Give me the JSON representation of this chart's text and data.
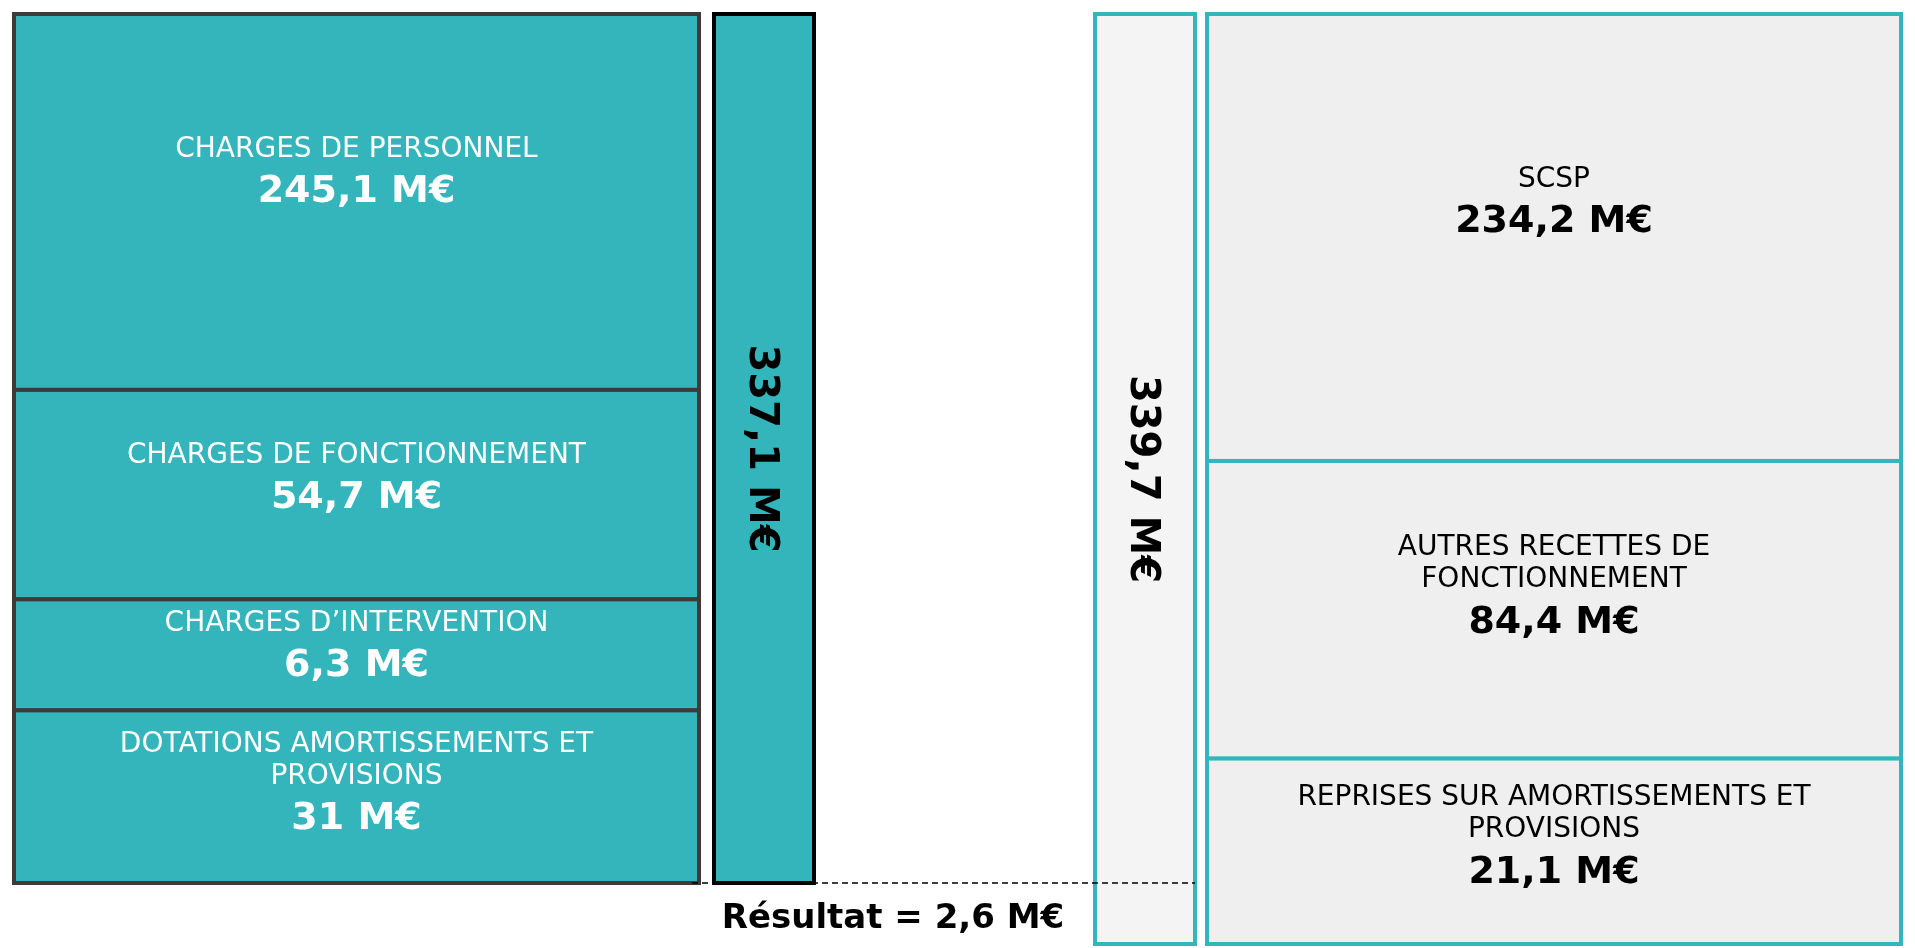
{
  "chart_data": {
    "type": "other",
    "series": [
      {
        "name": "CHARGES DE PERSONNEL",
        "color": "#33b5bb",
        "values": [
          245.1
        ],
        "value_labels": [
          "245,1 M€"
        ]
      },
      {
        "name": "CHARGES DE FONCTIONNEMENT",
        "color": "#33b5bb",
        "values": [
          54.7
        ],
        "value_labels": [
          "54,7 M€"
        ]
      },
      {
        "name": "CHARGES D’INTERVENTION",
        "color": "#33b5bb",
        "values": [
          6.3
        ],
        "value_labels": [
          "6,3 M€"
        ]
      },
      {
        "name": "DOTATIONS AMORTISSEMENTS ET PROVISIONS",
        "color": "#33b5bb",
        "values": [
          31
        ],
        "value_labels": [
          "31 M€"
        ]
      },
      {
        "name": "SCSP",
        "color": "#efefef",
        "values": [
          234.2
        ],
        "value_labels": [
          "234,2 M€"
        ]
      },
      {
        "name": "AUTRES RECETTES DE FONCTIONNEMENT",
        "color": "#efefef",
        "values": [
          84.4
        ],
        "value_labels": [
          "84,4 M€"
        ]
      },
      {
        "name": "REPRISES SUR AMORTISSEMENTS ET PROVISIONS",
        "color": "#efefef",
        "values": [
          21.1
        ],
        "value_labels": [
          "21,1 M€"
        ]
      }
    ],
    "totals": [
      "337,1 M€",
      "339,7 M€"
    ],
    "annotations": [
      "Résultat = 2,6 M€"
    ]
  }
}
